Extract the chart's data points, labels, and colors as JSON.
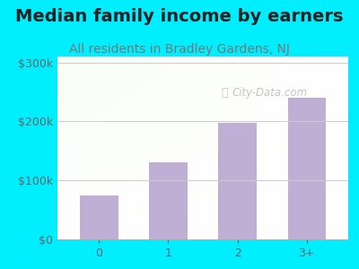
{
  "title": "Median family income by earners",
  "subtitle": "All residents in Bradley Gardens, NJ",
  "categories": [
    "0",
    "1",
    "2",
    "3+"
  ],
  "values": [
    75000,
    130000,
    197000,
    240000
  ],
  "bar_color": "#c0afd4",
  "bar_edge_color": "#c0afd4",
  "ylim": [
    0,
    310000
  ],
  "ytick_values": [
    0,
    100000,
    200000,
    300000
  ],
  "ytick_labels": [
    "$0",
    "$100k",
    "$200k",
    "$300k"
  ],
  "title_fontsize": 14,
  "subtitle_fontsize": 10,
  "title_color": "#222222",
  "subtitle_color": "#777777",
  "tick_color": "#666666",
  "bg_outer": "#00eeff",
  "watermark": "City-Data.com",
  "watermark_color": "#bbbbbb",
  "grid_color": "#cccccc"
}
